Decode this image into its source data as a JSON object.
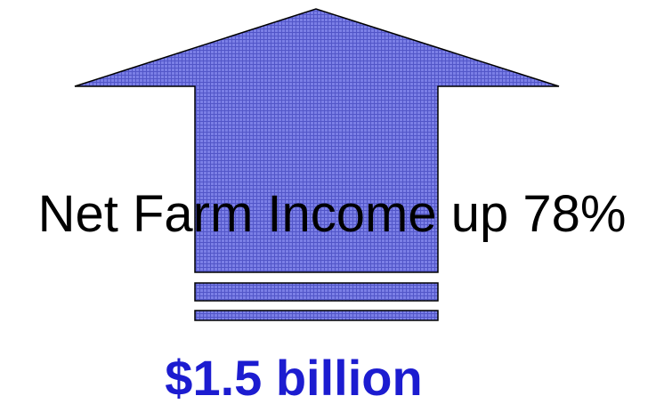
{
  "headline": "Net Farm Income up 78%",
  "amount": "$1.5 billion",
  "icon": "up-arrow-icon",
  "colors": {
    "arrow_fill": "#7b7fe6",
    "arrow_grid": "#5256c8",
    "arrow_outline": "#000000",
    "headline_text": "#000000",
    "amount_text": "#1c1cd0"
  }
}
